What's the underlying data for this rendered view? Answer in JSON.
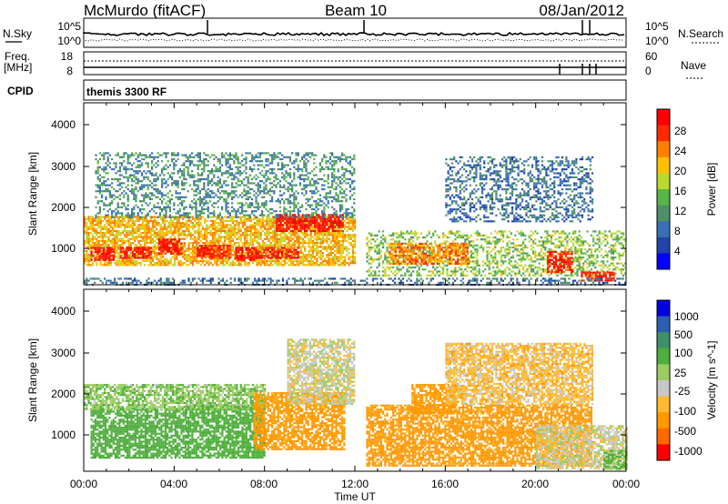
{
  "header": {
    "title": "McMurdo (fitACF)",
    "beam": "Beam 10",
    "date": "08/Jan/2012"
  },
  "strips": {
    "nsky_label": "N.Sky",
    "nsearch_label": "N.Search",
    "nsky_ticks": [
      "10^5",
      "10^0"
    ],
    "nsearch_ticks": [
      "10^5",
      "10^0"
    ],
    "freq_label": "Freq.",
    "freq_unit": "[MHz]",
    "freq_ticks": [
      "18",
      "8"
    ],
    "nave_label": "Nave",
    "nave_ticks": [
      "60",
      "0"
    ],
    "cpid_label": "CPID",
    "cpid_value": "themis 3300 RF"
  },
  "panels": {
    "ylabel": "Slant Range [km]",
    "ytick_labels": [
      "4000",
      "3000",
      "2000",
      "1000"
    ],
    "xlabel": "Time UT",
    "xtick_labels": [
      "00:00",
      "04:00",
      "08:00",
      "12:00",
      "16:00",
      "20:00",
      "00:00"
    ]
  },
  "colors": {
    "power_scale": [
      "#0000ff",
      "#2244aa",
      "#3b6fb5",
      "#4f9068",
      "#59b548",
      "#b9d830",
      "#ffc000",
      "#ff8000",
      "#ff2a00",
      "#ff0000"
    ],
    "velocity_scale": [
      "#ff0000",
      "#ff6a00",
      "#ff9900",
      "#ffbb33",
      "#c8c8c8",
      "#9ccc60",
      "#4fae3c",
      "#3f8f6a",
      "#2c5fb0",
      "#0000e0"
    ],
    "frame": "#000000"
  },
  "chart_data": [
    {
      "type": "heatmap",
      "name": "power",
      "xlabel": "Time UT",
      "ylabel": "Slant Range [km]",
      "colorbar_label": "Power [dB]",
      "colorbar_ticks": [
        "28",
        "24",
        "20",
        "16",
        "12",
        "8",
        "4"
      ],
      "xlim": [
        0,
        24
      ],
      "ylim": [
        180,
        4600
      ],
      "zlim": [
        0,
        30
      ],
      "regions": [
        {
          "t0": 0.0,
          "t1": 12.0,
          "r0": 650,
          "r1": 1850,
          "value": 20
        },
        {
          "t0": 0.3,
          "t1": 1.3,
          "r0": 800,
          "r1": 1100,
          "value": 29
        },
        {
          "t0": 1.6,
          "t1": 3.0,
          "r0": 850,
          "r1": 1100,
          "value": 27
        },
        {
          "t0": 3.3,
          "t1": 4.3,
          "r0": 950,
          "r1": 1300,
          "value": 28
        },
        {
          "t0": 5.0,
          "t1": 6.5,
          "r0": 850,
          "r1": 1150,
          "value": 27
        },
        {
          "t0": 6.7,
          "t1": 7.6,
          "r0": 800,
          "r1": 1100,
          "value": 28
        },
        {
          "t0": 8.5,
          "t1": 11.5,
          "r0": 1500,
          "r1": 1900,
          "value": 28
        },
        {
          "t0": 7.5,
          "t1": 9.5,
          "r0": 850,
          "r1": 1100,
          "value": 26
        },
        {
          "t0": 0.5,
          "t1": 12.0,
          "r0": 1800,
          "r1": 3400,
          "value": 10
        },
        {
          "t0": 12.5,
          "t1": 24.0,
          "r0": 400,
          "r1": 1500,
          "value": 15
        },
        {
          "t0": 13.5,
          "t1": 17.0,
          "r0": 700,
          "r1": 1200,
          "value": 22
        },
        {
          "t0": 20.5,
          "t1": 21.6,
          "r0": 500,
          "r1": 1000,
          "value": 27
        },
        {
          "t0": 22.0,
          "t1": 23.5,
          "r0": 300,
          "r1": 500,
          "value": 27
        },
        {
          "t0": 16.0,
          "t1": 22.5,
          "r0": 1700,
          "r1": 3300,
          "value": 8
        },
        {
          "t0": 0.0,
          "t1": 24.0,
          "r0": 200,
          "r1": 350,
          "value": 8
        }
      ]
    },
    {
      "type": "heatmap",
      "name": "velocity",
      "xlabel": "Time UT",
      "ylabel": "Slant Range [km]",
      "colorbar_label": "Velocity [m s^-1]",
      "colorbar_ticks": [
        "1000",
        "500",
        "100",
        "25",
        "-25",
        "-100",
        "-500",
        "-1000"
      ],
      "xlim": [
        0,
        24
      ],
      "ylim": [
        180,
        4600
      ],
      "zlim": [
        -1200,
        1200
      ],
      "regions": [
        {
          "t0": 0.3,
          "t1": 4.5,
          "r0": 500,
          "r1": 1700,
          "value": 300
        },
        {
          "t0": 4.5,
          "t1": 8.0,
          "r0": 500,
          "r1": 1800,
          "value": 300
        },
        {
          "t0": 0.0,
          "t1": 8.0,
          "r0": 1700,
          "r1": 2300,
          "value": 80
        },
        {
          "t0": 7.5,
          "t1": 11.5,
          "r0": 700,
          "r1": 2100,
          "value": -150
        },
        {
          "t0": 9.0,
          "t1": 12.0,
          "r0": 1800,
          "r1": 3400,
          "value": 0
        },
        {
          "t0": 12.5,
          "t1": 22.5,
          "r0": 300,
          "r1": 1800,
          "value": -150
        },
        {
          "t0": 14.5,
          "t1": 16.5,
          "r0": 1600,
          "r1": 2300,
          "value": -150
        },
        {
          "t0": 20.0,
          "t1": 24.0,
          "r0": 250,
          "r1": 1300,
          "value": 0
        },
        {
          "t0": 23.0,
          "t1": 24.0,
          "r0": 250,
          "r1": 700,
          "value": 120
        },
        {
          "t0": 16.0,
          "t1": 22.5,
          "r0": 1800,
          "r1": 3300,
          "value": -60
        }
      ]
    }
  ]
}
